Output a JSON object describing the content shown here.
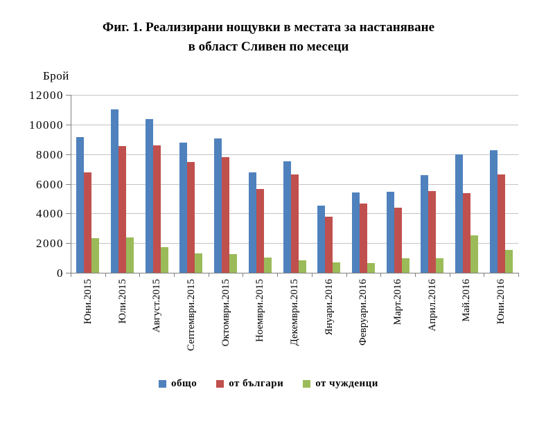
{
  "title": {
    "line1": "Фиг. 1. Реализирани нощувки в местата за настаняване",
    "line2": "в област Сливен по месеци"
  },
  "chart_data": {
    "type": "bar",
    "title": "Фиг. 1. Реализирани нощувки в местата за настаняване в област Сливен по месеци",
    "ylabel": "Брой",
    "xlabel": "",
    "categories": [
      "Юни.2015",
      "Юли.2015",
      "Август.2015",
      "Септември.2015",
      "Октомври.2015",
      "Ноември.2015",
      "Декември.2015",
      "Януари.2016",
      "Февруари.2016",
      "Март.2016",
      "Април.2016",
      "Май.2016",
      "Юни.2016"
    ],
    "series": [
      {
        "name": "общо",
        "color": "#4f81bd",
        "values": [
          9150,
          11000,
          10350,
          8800,
          9050,
          6750,
          7500,
          4550,
          5400,
          5450,
          6600,
          8000,
          8250
        ]
      },
      {
        "name": "от българи",
        "color": "#c0504d",
        "values": [
          6750,
          8550,
          8600,
          7450,
          7800,
          5650,
          6650,
          3800,
          4650,
          4400,
          5500,
          5350,
          6650
        ]
      },
      {
        "name": "от чужденци",
        "color": "#9bbb59",
        "values": [
          2350,
          2400,
          1750,
          1300,
          1250,
          1050,
          850,
          700,
          650,
          1000,
          1000,
          2500,
          1550
        ]
      }
    ],
    "ylim": [
      0,
      12000
    ],
    "y_tick_step": 2000,
    "y_tick_labels": [
      "0",
      "2000",
      "4000",
      "6000",
      "8000",
      "10000",
      "12000"
    ],
    "grid": true,
    "legend_position": "bottom",
    "x_labels_rotation": 90
  },
  "colors": {
    "grid": "#c3c3c3",
    "axis": "#7f7f7f",
    "background": "#ffffff",
    "text": "#000000"
  }
}
